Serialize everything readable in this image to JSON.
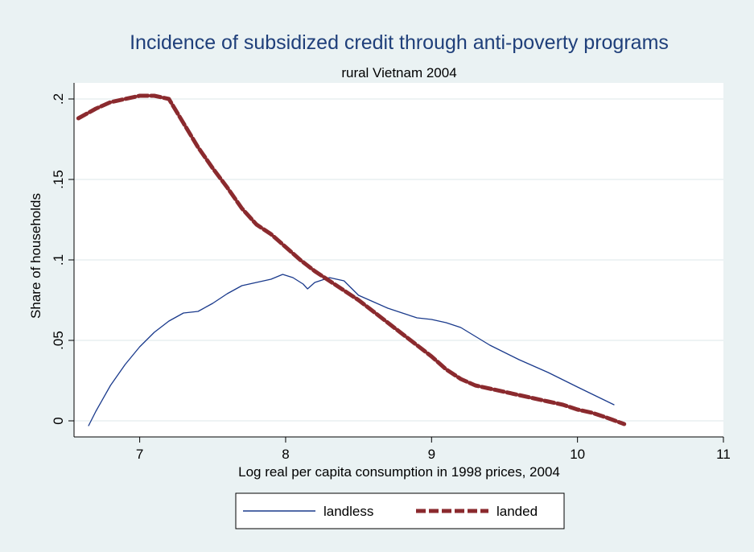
{
  "chart_data": {
    "type": "line",
    "title": "Incidence of subsidized credit through anti-poverty programs",
    "subtitle": "rural Vietnam 2004",
    "xlabel": "Log real per capita consumption in 1998 prices, 2004",
    "ylabel": "Share of households",
    "xlim": [
      6.55,
      11.0
    ],
    "ylim": [
      -0.01,
      0.21
    ],
    "x_ticks": [
      7,
      8,
      9,
      10,
      11
    ],
    "x_tick_labels": [
      "7",
      "8",
      "9",
      "10",
      "11"
    ],
    "y_ticks": [
      0,
      0.05,
      0.1,
      0.15,
      0.2
    ],
    "y_tick_labels": [
      "0",
      ".05",
      ".1",
      ".15",
      ".2"
    ],
    "grid": true,
    "legend_position": "bottom",
    "series": [
      {
        "name": "landless",
        "color": "#1a3a8c",
        "style": "solid",
        "points": [
          [
            6.65,
            -0.003
          ],
          [
            6.7,
            0.006
          ],
          [
            6.8,
            0.022
          ],
          [
            6.9,
            0.035
          ],
          [
            7.0,
            0.046
          ],
          [
            7.1,
            0.055
          ],
          [
            7.2,
            0.062
          ],
          [
            7.3,
            0.067
          ],
          [
            7.4,
            0.068
          ],
          [
            7.5,
            0.073
          ],
          [
            7.6,
            0.079
          ],
          [
            7.7,
            0.084
          ],
          [
            7.8,
            0.086
          ],
          [
            7.9,
            0.088
          ],
          [
            7.98,
            0.091
          ],
          [
            8.05,
            0.089
          ],
          [
            8.12,
            0.085
          ],
          [
            8.15,
            0.082
          ],
          [
            8.2,
            0.086
          ],
          [
            8.3,
            0.089
          ],
          [
            8.4,
            0.087
          ],
          [
            8.5,
            0.078
          ],
          [
            8.6,
            0.074
          ],
          [
            8.7,
            0.07
          ],
          [
            8.8,
            0.067
          ],
          [
            8.9,
            0.064
          ],
          [
            9.0,
            0.063
          ],
          [
            9.1,
            0.061
          ],
          [
            9.2,
            0.058
          ],
          [
            9.4,
            0.047
          ],
          [
            9.6,
            0.038
          ],
          [
            9.8,
            0.03
          ],
          [
            10.0,
            0.021
          ],
          [
            10.25,
            0.01
          ]
        ]
      },
      {
        "name": "landed",
        "color": "#8b2a2e",
        "style": "dashed",
        "points": [
          [
            6.58,
            0.188
          ],
          [
            6.7,
            0.194
          ],
          [
            6.8,
            0.198
          ],
          [
            6.9,
            0.2
          ],
          [
            7.0,
            0.202
          ],
          [
            7.1,
            0.202
          ],
          [
            7.2,
            0.2
          ],
          [
            7.3,
            0.185
          ],
          [
            7.4,
            0.17
          ],
          [
            7.5,
            0.157
          ],
          [
            7.6,
            0.145
          ],
          [
            7.7,
            0.132
          ],
          [
            7.8,
            0.122
          ],
          [
            7.9,
            0.116
          ],
          [
            8.0,
            0.108
          ],
          [
            8.1,
            0.1
          ],
          [
            8.2,
            0.093
          ],
          [
            8.3,
            0.087
          ],
          [
            8.4,
            0.081
          ],
          [
            8.5,
            0.075
          ],
          [
            8.6,
            0.068
          ],
          [
            8.7,
            0.061
          ],
          [
            8.8,
            0.054
          ],
          [
            8.9,
            0.047
          ],
          [
            9.0,
            0.04
          ],
          [
            9.1,
            0.032
          ],
          [
            9.2,
            0.026
          ],
          [
            9.3,
            0.022
          ],
          [
            9.4,
            0.02
          ],
          [
            9.5,
            0.018
          ],
          [
            9.6,
            0.016
          ],
          [
            9.7,
            0.014
          ],
          [
            9.8,
            0.012
          ],
          [
            9.9,
            0.01
          ],
          [
            10.0,
            0.007
          ],
          [
            10.1,
            0.005
          ],
          [
            10.2,
            0.002
          ],
          [
            10.32,
            -0.002
          ]
        ]
      }
    ]
  }
}
